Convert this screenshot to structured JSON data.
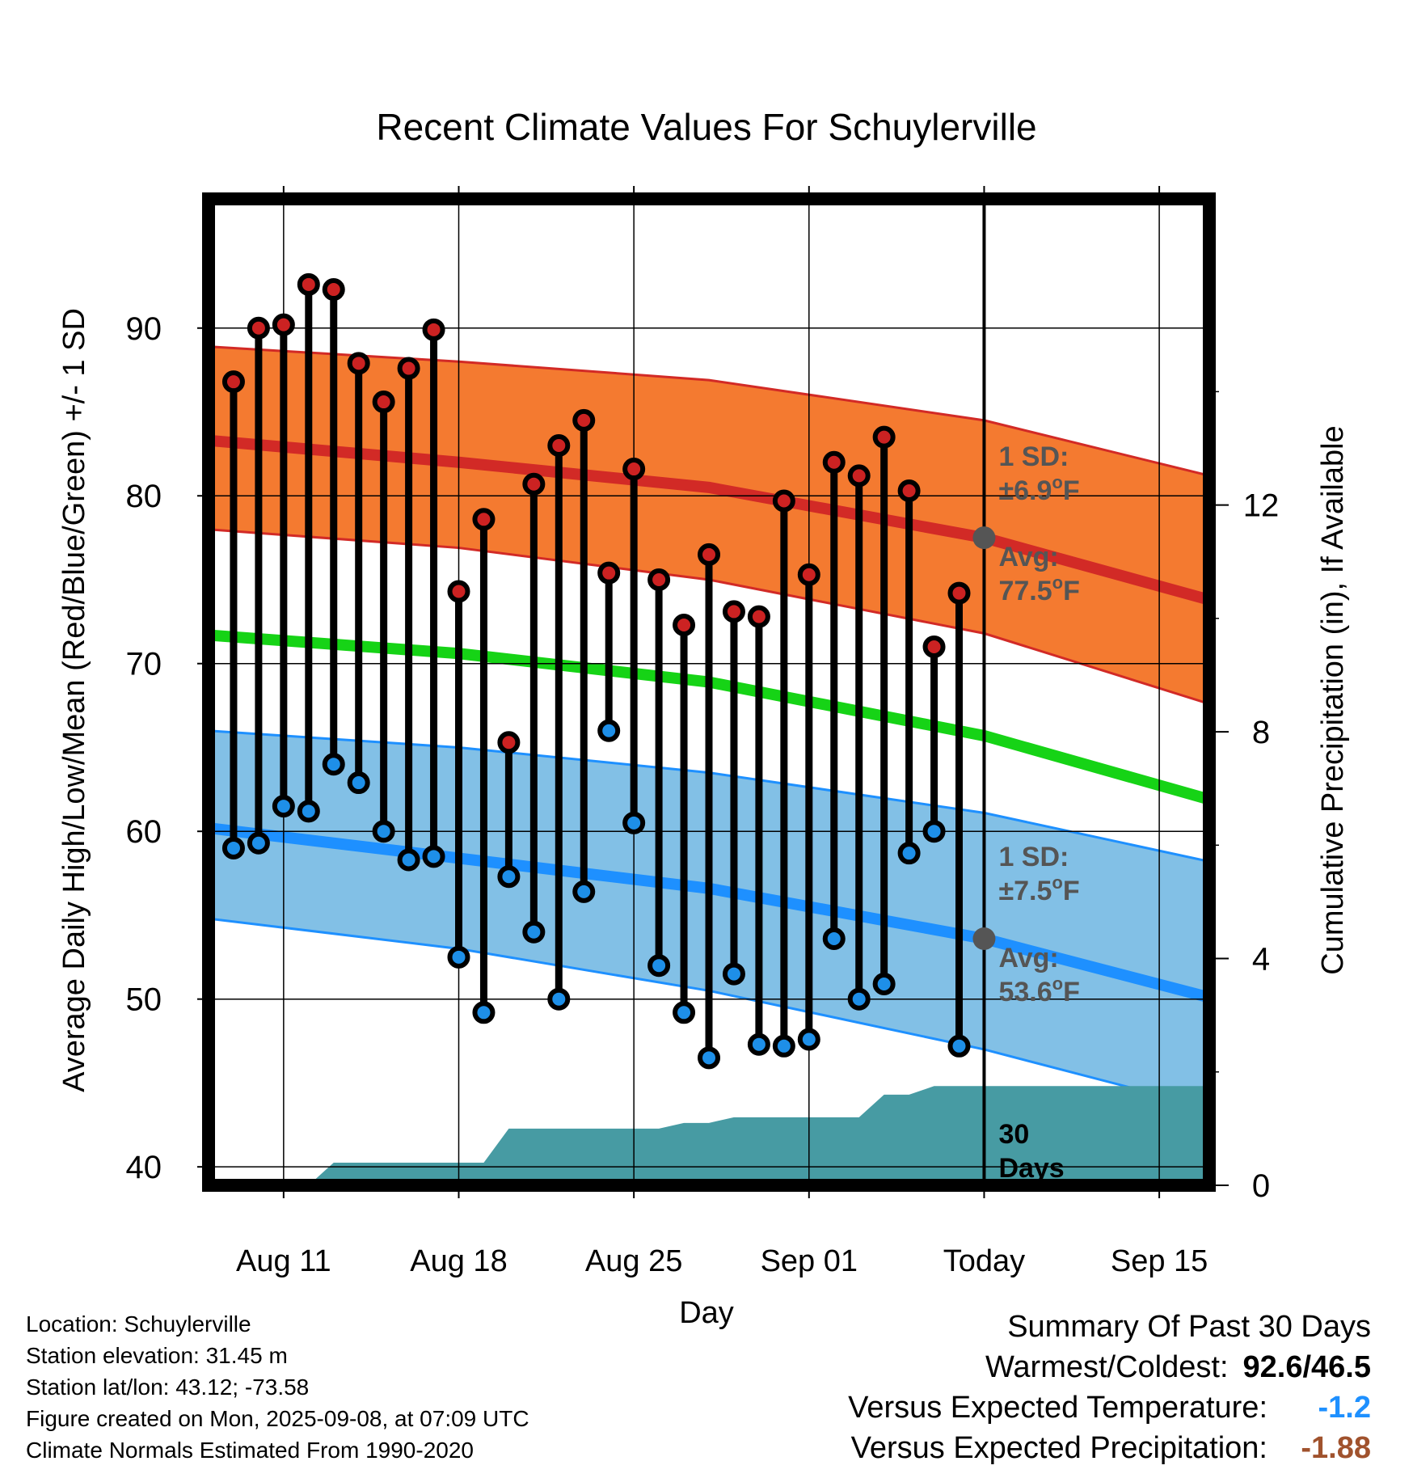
{
  "chart_data": {
    "type": "line",
    "title": "Recent Climate Values For Schuylerville",
    "xlabel": "Day",
    "ylabel": "Average Daily High/Low/Mean (Red/Blue/Green) +/- 1 SD",
    "y2label": "Cumulative Precipitation (in), If Available",
    "ylim": [
      38.9,
      97.7
    ],
    "y_ticks": [
      "40",
      "50",
      "60",
      "70",
      "80",
      "90"
    ],
    "y2lim": [
      0,
      17.4
    ],
    "y2_ticks": [
      "0",
      "4",
      "8",
      "12"
    ],
    "xlim": [
      "2025-08-08",
      "2025-09-17"
    ],
    "x_ticks": [
      {
        "date": "2025-08-11",
        "label": "Aug 11"
      },
      {
        "date": "2025-08-18",
        "label": "Aug 18"
      },
      {
        "date": "2025-08-25",
        "label": "Aug 25"
      },
      {
        "date": "2025-09-01",
        "label": "Sep 01"
      },
      {
        "date": "2025-09-08",
        "label": "Today"
      },
      {
        "date": "2025-09-15",
        "label": "Sep 15"
      }
    ],
    "today": "2025-09-08",
    "dates": [
      "2025-08-09",
      "2025-08-10",
      "2025-08-11",
      "2025-08-12",
      "2025-08-13",
      "2025-08-14",
      "2025-08-15",
      "2025-08-16",
      "2025-08-17",
      "2025-08-18",
      "2025-08-19",
      "2025-08-20",
      "2025-08-21",
      "2025-08-22",
      "2025-08-23",
      "2025-08-24",
      "2025-08-25",
      "2025-08-26",
      "2025-08-27",
      "2025-08-28",
      "2025-08-29",
      "2025-08-30",
      "2025-08-31",
      "2025-09-01",
      "2025-09-02",
      "2025-09-03",
      "2025-09-04",
      "2025-09-05",
      "2025-09-06",
      "2025-09-07"
    ],
    "highs": [
      86.8,
      90.0,
      90.2,
      92.6,
      92.3,
      87.9,
      85.6,
      87.6,
      89.9,
      74.3,
      78.6,
      65.3,
      80.7,
      83.0,
      84.5,
      75.4,
      81.6,
      75.0,
      72.3,
      76.5,
      73.1,
      72.8,
      79.7,
      75.3,
      82.0,
      81.2,
      83.5,
      80.3,
      71.0,
      74.2
    ],
    "lows": [
      59.0,
      59.3,
      61.5,
      61.2,
      64.0,
      62.9,
      60.0,
      58.3,
      58.5,
      52.5,
      49.2,
      57.3,
      54.0,
      50.0,
      56.4,
      66.0,
      60.5,
      52.0,
      49.2,
      46.5,
      51.5,
      47.3,
      47.2,
      47.6,
      53.6,
      50.0,
      50.9,
      58.7,
      60.0,
      47.2
    ],
    "normals": {
      "x": [
        "2025-08-08",
        "2025-08-18",
        "2025-08-28",
        "2025-09-08",
        "2025-09-17"
      ],
      "high_avg": [
        83.3,
        82.0,
        80.5,
        77.5,
        73.8
      ],
      "high_sd_upper": [
        88.9,
        88.0,
        86.9,
        84.5,
        81.2
      ],
      "high_sd_lower": [
        78.0,
        76.9,
        75.0,
        71.8,
        67.6
      ],
      "mean_avg": [
        71.7,
        70.6,
        68.9,
        65.7,
        61.9
      ],
      "low_avg": [
        60.2,
        58.4,
        56.6,
        53.6,
        50.1
      ],
      "low_sd_upper": [
        66.0,
        65.0,
        63.5,
        61.1,
        58.2
      ],
      "low_sd_lower": [
        54.8,
        53.0,
        50.5,
        47.0,
        43.5
      ]
    },
    "precip_cumulative": {
      "x": [
        "2025-08-12",
        "2025-08-13",
        "2025-08-19",
        "2025-08-20",
        "2025-08-26",
        "2025-08-27",
        "2025-08-28",
        "2025-08-29",
        "2025-09-03",
        "2025-09-04",
        "2025-09-05",
        "2025-09-06",
        "2025-09-17"
      ],
      "y": [
        0.0,
        0.4,
        0.4,
        1.0,
        1.0,
        1.1,
        1.1,
        1.2,
        1.2,
        1.6,
        1.6,
        1.75,
        1.75
      ]
    },
    "annotations": {
      "high_sd": {
        "line1": "1 SD:",
        "line2": "±6.9",
        "unit": "F"
      },
      "high_avg": {
        "line1": "Avg:",
        "line2": "77.5",
        "unit": "F"
      },
      "low_sd": {
        "line1": "1 SD:",
        "line2": "±7.5",
        "unit": "F"
      },
      "low_avg": {
        "line1": "Avg:",
        "line2": "53.6",
        "unit": "F"
      },
      "precip_days": {
        "line1": "30",
        "line2": "Days"
      }
    },
    "colors": {
      "high_band": "#f47a30",
      "high_line": "#d22a26",
      "mean_line": "#16d316",
      "low_band": "#82c0e6",
      "low_line": "#1e90ff",
      "precip": "#479ba3",
      "high_dot": "#cc2222",
      "low_dot": "#1e8fe8"
    }
  },
  "footer": {
    "location": "Location: Schuylerville",
    "elevation": "Station elevation: 31.45 m",
    "latlon": "Station lat/lon: 43.12; -73.58",
    "created": "Figure created on Mon, 2025-09-08, at 07:09 UTC",
    "normals": "Climate Normals Estimated From 1990-2020"
  },
  "summary": {
    "heading": "Summary Of Past 30 Days",
    "warm_label": "Warmest/Coldest:",
    "warm_value": "92.6/46.5",
    "temp_label": "Versus Expected Temperature:",
    "temp_value": "-1.2",
    "temp_color": "#1e90ff",
    "precip_label": "Versus Expected Precipitation:",
    "precip_value": "-1.88",
    "precip_color": "#a0522d"
  }
}
